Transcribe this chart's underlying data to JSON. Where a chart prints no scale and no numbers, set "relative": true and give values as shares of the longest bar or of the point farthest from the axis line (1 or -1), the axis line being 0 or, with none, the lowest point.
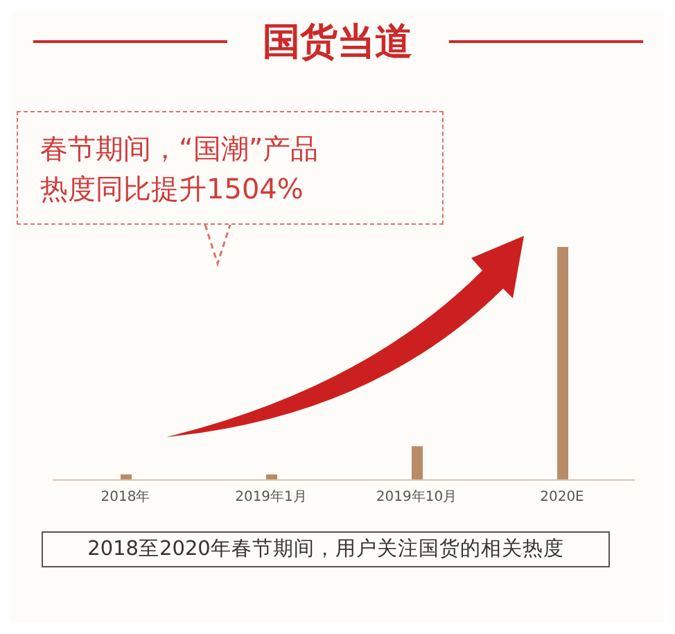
{
  "chart_data": {
    "type": "bar",
    "title": "国货当道",
    "relative": true,
    "categories": [
      "2018年",
      "2019年1月",
      "2019年10月",
      "2020E"
    ],
    "values": [
      0.024,
      0.024,
      0.145,
      1
    ],
    "color": "#b98c68",
    "annotations": [
      "春节期间，“国潮”产品热度同比提升1504%",
      "2018至2020年春节期间，用户关注国货的相关热度"
    ]
  }
}
